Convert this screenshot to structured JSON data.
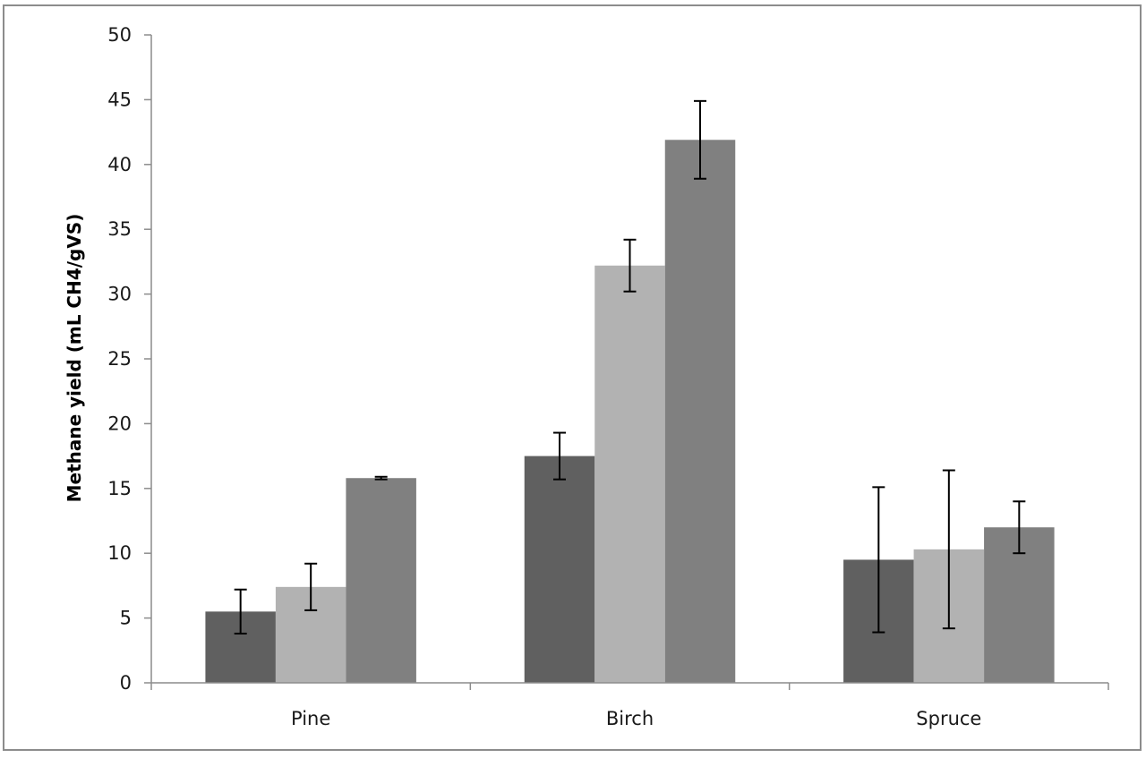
{
  "chart_data": {
    "type": "bar",
    "title": "",
    "xlabel": "",
    "ylabel": "Methane yield (mL CH4/gVS)",
    "categories": [
      "Pine",
      "Birch",
      "Spruce"
    ],
    "ylim": [
      0,
      50
    ],
    "yticks": [
      0,
      5,
      10,
      15,
      20,
      25,
      30,
      35,
      40,
      45,
      50
    ],
    "grid": false,
    "legend": "none",
    "series": [
      {
        "color": "#606060",
        "values": [
          5.5,
          17.5,
          9.5
        ],
        "errors": [
          1.7,
          1.8,
          5.6
        ]
      },
      {
        "color": "#b2b2b2",
        "values": [
          7.4,
          32.2,
          10.3
        ],
        "errors": [
          1.8,
          2.0,
          6.1
        ]
      },
      {
        "color": "#808080",
        "values": [
          15.8,
          41.9,
          12.0
        ],
        "errors": [
          0.1,
          3.0,
          2.0
        ]
      }
    ]
  }
}
